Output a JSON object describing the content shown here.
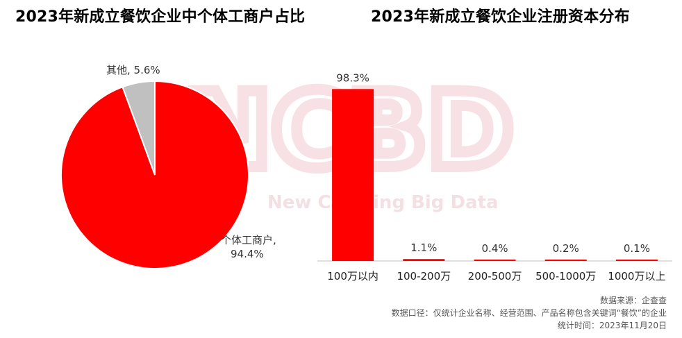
{
  "titles": {
    "left": "2023年新成立餐饮企业中个体工商户占比",
    "right": "2023年新成立餐饮企业注册资本分布"
  },
  "watermark": {
    "letters": "NCBD",
    "sub": "New Catering Big Data"
  },
  "colors": {
    "primary": "#ff0000",
    "secondary": "#c0c0c0"
  },
  "chart_data": [
    {
      "type": "pie",
      "title": "2023年新成立餐饮企业中个体工商户占比",
      "slices": [
        {
          "label": "个体工商户",
          "value": 94.4,
          "display": "94.4%",
          "color": "#ff0000"
        },
        {
          "label": "其他",
          "value": 5.6,
          "display": "5.6%",
          "color": "#c0c0c0"
        }
      ]
    },
    {
      "type": "bar",
      "title": "2023年新成立餐饮企业注册资本分布",
      "categories": [
        "100万以内",
        "100-200万",
        "200-500万",
        "500-1000万",
        "1000万以上"
      ],
      "values": [
        98.3,
        1.1,
        0.4,
        0.2,
        0.1
      ],
      "labels": [
        "98.3%",
        "1.1%",
        "0.4%",
        "0.2%",
        "0.1%"
      ],
      "color": "#ff0000",
      "ylim": [
        0,
        100
      ]
    }
  ],
  "notes": {
    "source": "数据来源：企查查",
    "scope": "数据口径：仅统计企业名称、经营范围、产品名称包含关键词“餐饮”的企业",
    "date": "统计时间：2023年11月20日"
  }
}
